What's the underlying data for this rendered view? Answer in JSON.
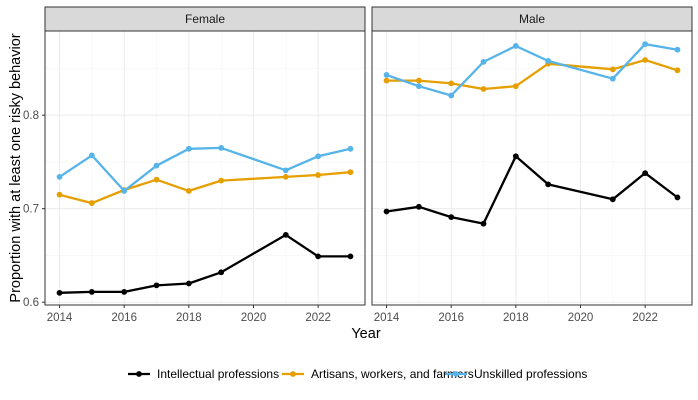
{
  "chart_data": {
    "type": "line",
    "xlabel": "Year",
    "ylabel": "Proportion with at least one risky behavior",
    "xlim": [
      2013.55,
      2023.45
    ],
    "ylim": [
      0.597,
      0.89
    ],
    "x_ticks": [
      2014,
      2016,
      2018,
      2020,
      2022
    ],
    "y_ticks": [
      0.6,
      0.7,
      0.8
    ],
    "y_tick_labels": [
      "0.6",
      "0.7",
      "0.8"
    ],
    "legend": {
      "position": "bottom",
      "entries": [
        {
          "name": "Intellectual professions",
          "color": "#000000"
        },
        {
          "name": "Artisans, workers, and farmers",
          "color": "#E69F00"
        },
        {
          "name": "Unskilled professions",
          "color": "#56B4E9"
        }
      ]
    },
    "panels": [
      {
        "title": "Female",
        "series": [
          {
            "name": "Intellectual professions",
            "color": "#000000",
            "x": [
              2014,
              2015,
              2016,
              2017,
              2018,
              2019,
              2021,
              2022,
              2023
            ],
            "y": [
              0.61,
              0.611,
              0.611,
              0.618,
              0.62,
              0.632,
              0.672,
              0.649,
              0.649
            ]
          },
          {
            "name": "Artisans, workers, and farmers",
            "color": "#E69F00",
            "x": [
              2014,
              2015,
              2016,
              2017,
              2018,
              2019,
              2021,
              2022,
              2023
            ],
            "y": [
              0.715,
              0.706,
              0.72,
              0.731,
              0.719,
              0.73,
              0.734,
              0.736,
              0.739
            ]
          },
          {
            "name": "Unskilled professions",
            "color": "#56B4E9",
            "x": [
              2014,
              2015,
              2016,
              2017,
              2018,
              2019,
              2021,
              2022,
              2023
            ],
            "y": [
              0.734,
              0.757,
              0.719,
              0.746,
              0.764,
              0.765,
              0.741,
              0.756,
              0.764
            ]
          }
        ]
      },
      {
        "title": "Male",
        "series": [
          {
            "name": "Intellectual professions",
            "color": "#000000",
            "x": [
              2014,
              2015,
              2016,
              2017,
              2018,
              2019,
              2021,
              2022,
              2023
            ],
            "y": [
              0.697,
              0.702,
              0.691,
              0.684,
              0.756,
              0.726,
              0.71,
              0.738,
              0.712
            ]
          },
          {
            "name": "Artisans, workers, and farmers",
            "color": "#E69F00",
            "x": [
              2014,
              2015,
              2016,
              2017,
              2018,
              2019,
              2021,
              2022,
              2023
            ],
            "y": [
              0.837,
              0.837,
              0.834,
              0.828,
              0.831,
              0.855,
              0.849,
              0.859,
              0.848
            ]
          },
          {
            "name": "Unskilled professions",
            "color": "#56B4E9",
            "x": [
              2014,
              2015,
              2016,
              2017,
              2018,
              2019,
              2021,
              2022,
              2023
            ],
            "y": [
              0.843,
              0.831,
              0.821,
              0.857,
              0.874,
              0.858,
              0.839,
              0.876,
              0.87
            ]
          }
        ]
      }
    ]
  }
}
